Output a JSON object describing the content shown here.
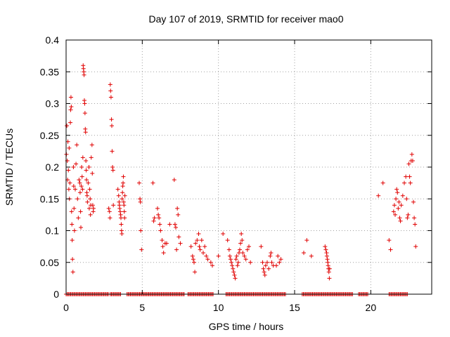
{
  "chart_data": {
    "type": "scatter",
    "title": "Day 107 of 2019, SRMTID for receiver mao0",
    "xlabel": "GPS time / hours",
    "ylabel": "SRMTID / TECUs",
    "xlim": [
      0,
      24
    ],
    "ylim": [
      0,
      0.4
    ],
    "xticks": [
      "0",
      "5",
      "10",
      "15",
      "20"
    ],
    "yticks": [
      "0",
      "0.05",
      "0.1",
      "0.15",
      "0.2",
      "0.25",
      "0.3",
      "0.35",
      "0.4"
    ],
    "xtick_values": [
      0,
      5,
      10,
      15,
      20
    ],
    "ytick_values": [
      0,
      0.05,
      0.1,
      0.15,
      0.2,
      0.25,
      0.3,
      0.35,
      0.4
    ],
    "grid": true,
    "marker": "+",
    "marker_color": "#e00000",
    "series": [
      {
        "name": "SRMTID",
        "points": [
          [
            0.02,
            0.22
          ],
          [
            0.05,
            0.265
          ],
          [
            0.08,
            0.21
          ],
          [
            0.1,
            0.18
          ],
          [
            0.12,
            0.24
          ],
          [
            0.15,
            0.195
          ],
          [
            0.18,
            0.165
          ],
          [
            0.2,
            0.23
          ],
          [
            0.22,
            0.15
          ],
          [
            0.25,
            0.175
          ],
          [
            0.28,
            0.27
          ],
          [
            0.3,
            0.29
          ],
          [
            0.32,
            0.31
          ],
          [
            0.34,
            0.295
          ],
          [
            0.36,
            0.13
          ],
          [
            0.38,
            0.11
          ],
          [
            0.4,
            0.085
          ],
          [
            0.42,
            0.055
          ],
          [
            0.45,
            0.035
          ],
          [
            0.48,
            0.2
          ],
          [
            0.5,
            0.17
          ],
          [
            0.52,
            0.135
          ],
          [
            0.55,
            0.1
          ],
          [
            0.6,
            0.165
          ],
          [
            0.65,
            0.205
          ],
          [
            0.7,
            0.235
          ],
          [
            0.75,
            0.15
          ],
          [
            0.8,
            0.12
          ],
          [
            0.85,
            0.18
          ],
          [
            0.9,
            0.175
          ],
          [
            0.92,
            0.16
          ],
          [
            0.95,
            0.13
          ],
          [
            0.97,
            0.105
          ],
          [
            1.0,
            0.17
          ],
          [
            1.02,
            0.2
          ],
          [
            1.05,
            0.185
          ],
          [
            1.08,
            0.165
          ],
          [
            1.1,
            0.215
          ],
          [
            1.12,
            0.36
          ],
          [
            1.14,
            0.355
          ],
          [
            1.16,
            0.35
          ],
          [
            1.18,
            0.345
          ],
          [
            1.2,
            0.305
          ],
          [
            1.22,
            0.3
          ],
          [
            1.24,
            0.285
          ],
          [
            1.26,
            0.26
          ],
          [
            1.28,
            0.255
          ],
          [
            1.3,
            0.21
          ],
          [
            1.32,
            0.195
          ],
          [
            1.34,
            0.18
          ],
          [
            1.36,
            0.16
          ],
          [
            1.38,
            0.155
          ],
          [
            1.4,
            0.145
          ],
          [
            1.45,
            0.175
          ],
          [
            1.5,
            0.2
          ],
          [
            1.52,
            0.135
          ],
          [
            1.55,
            0.165
          ],
          [
            1.58,
            0.15
          ],
          [
            1.6,
            0.125
          ],
          [
            1.62,
            0.14
          ],
          [
            1.65,
            0.215
          ],
          [
            1.7,
            0.235
          ],
          [
            1.72,
            0.19
          ],
          [
            1.75,
            0.14
          ],
          [
            1.78,
            0.13
          ],
          [
            1.8,
            0.135
          ],
          [
            2.8,
            0.135
          ],
          [
            2.85,
            0.13
          ],
          [
            2.88,
            0.12
          ],
          [
            2.9,
            0.33
          ],
          [
            2.92,
            0.32
          ],
          [
            2.95,
            0.31
          ],
          [
            2.98,
            0.275
          ],
          [
            3.0,
            0.265
          ],
          [
            3.02,
            0.225
          ],
          [
            3.05,
            0.2
          ],
          [
            3.08,
            0.195
          ],
          [
            3.1,
            0.14
          ],
          [
            3.4,
            0.165
          ],
          [
            3.45,
            0.155
          ],
          [
            3.48,
            0.145
          ],
          [
            3.5,
            0.14
          ],
          [
            3.52,
            0.135
          ],
          [
            3.55,
            0.13
          ],
          [
            3.58,
            0.125
          ],
          [
            3.6,
            0.12
          ],
          [
            3.62,
            0.11
          ],
          [
            3.64,
            0.1
          ],
          [
            3.66,
            0.095
          ],
          [
            3.68,
            0.15
          ],
          [
            3.7,
            0.16
          ],
          [
            3.72,
            0.17
          ],
          [
            3.74,
            0.175
          ],
          [
            3.76,
            0.185
          ],
          [
            3.78,
            0.145
          ],
          [
            3.8,
            0.14
          ],
          [
            3.82,
            0.13
          ],
          [
            3.84,
            0.12
          ],
          [
            3.86,
            0.155
          ],
          [
            4.8,
            0.175
          ],
          [
            4.85,
            0.15
          ],
          [
            4.88,
            0.145
          ],
          [
            4.9,
            0.1
          ],
          [
            4.95,
            0.07
          ],
          [
            5.7,
            0.175
          ],
          [
            5.75,
            0.115
          ],
          [
            5.8,
            0.12
          ],
          [
            6.0,
            0.135
          ],
          [
            6.05,
            0.125
          ],
          [
            6.1,
            0.12
          ],
          [
            6.15,
            0.11
          ],
          [
            6.2,
            0.1
          ],
          [
            6.3,
            0.085
          ],
          [
            6.35,
            0.075
          ],
          [
            6.4,
            0.065
          ],
          [
            6.5,
            0.08
          ],
          [
            6.6,
            0.08
          ],
          [
            6.8,
            0.11
          ],
          [
            7.1,
            0.18
          ],
          [
            7.15,
            0.11
          ],
          [
            7.2,
            0.105
          ],
          [
            7.25,
            0.07
          ],
          [
            7.3,
            0.135
          ],
          [
            7.35,
            0.125
          ],
          [
            7.4,
            0.09
          ],
          [
            7.5,
            0.08
          ],
          [
            8.2,
            0.075
          ],
          [
            8.3,
            0.06
          ],
          [
            8.35,
            0.055
          ],
          [
            8.4,
            0.05
          ],
          [
            8.45,
            0.035
          ],
          [
            8.5,
            0.08
          ],
          [
            8.6,
            0.085
          ],
          [
            8.7,
            0.095
          ],
          [
            8.75,
            0.075
          ],
          [
            8.8,
            0.07
          ],
          [
            8.9,
            0.085
          ],
          [
            9.0,
            0.065
          ],
          [
            9.1,
            0.075
          ],
          [
            9.2,
            0.06
          ],
          [
            9.3,
            0.055
          ],
          [
            9.5,
            0.05
          ],
          [
            9.6,
            0.045
          ],
          [
            10.0,
            0.06
          ],
          [
            10.3,
            0.095
          ],
          [
            10.6,
            0.085
          ],
          [
            10.7,
            0.07
          ],
          [
            10.75,
            0.06
          ],
          [
            10.8,
            0.055
          ],
          [
            10.85,
            0.05
          ],
          [
            10.9,
            0.045
          ],
          [
            10.95,
            0.04
          ],
          [
            11.0,
            0.035
          ],
          [
            11.05,
            0.03
          ],
          [
            11.1,
            0.025
          ],
          [
            11.15,
            0.055
          ],
          [
            11.2,
            0.06
          ],
          [
            11.25,
            0.045
          ],
          [
            11.3,
            0.05
          ],
          [
            11.35,
            0.065
          ],
          [
            11.4,
            0.07
          ],
          [
            11.45,
            0.08
          ],
          [
            11.5,
            0.095
          ],
          [
            11.55,
            0.085
          ],
          [
            11.6,
            0.065
          ],
          [
            11.7,
            0.06
          ],
          [
            11.8,
            0.055
          ],
          [
            11.9,
            0.07
          ],
          [
            12.0,
            0.075
          ],
          [
            12.1,
            0.05
          ],
          [
            12.8,
            0.075
          ],
          [
            12.9,
            0.05
          ],
          [
            12.95,
            0.04
          ],
          [
            13.0,
            0.035
          ],
          [
            13.05,
            0.03
          ],
          [
            13.1,
            0.045
          ],
          [
            13.2,
            0.05
          ],
          [
            13.3,
            0.04
          ],
          [
            13.4,
            0.06
          ],
          [
            13.45,
            0.065
          ],
          [
            13.5,
            0.05
          ],
          [
            13.6,
            0.045
          ],
          [
            13.8,
            0.045
          ],
          [
            13.9,
            0.06
          ],
          [
            14.0,
            0.05
          ],
          [
            14.1,
            0.055
          ],
          [
            15.6,
            0.065
          ],
          [
            15.8,
            0.085
          ],
          [
            16.1,
            0.06
          ],
          [
            17.0,
            0.075
          ],
          [
            17.05,
            0.07
          ],
          [
            17.1,
            0.065
          ],
          [
            17.12,
            0.06
          ],
          [
            17.15,
            0.055
          ],
          [
            17.18,
            0.05
          ],
          [
            17.2,
            0.045
          ],
          [
            17.22,
            0.04
          ],
          [
            17.25,
            0.035
          ],
          [
            17.28,
            0.025
          ],
          [
            17.3,
            0.04
          ],
          [
            20.5,
            0.155
          ],
          [
            20.8,
            0.175
          ],
          [
            21.2,
            0.085
          ],
          [
            21.3,
            0.07
          ],
          [
            21.5,
            0.13
          ],
          [
            21.55,
            0.14
          ],
          [
            21.6,
            0.125
          ],
          [
            21.65,
            0.15
          ],
          [
            21.7,
            0.165
          ],
          [
            21.75,
            0.16
          ],
          [
            21.8,
            0.135
          ],
          [
            21.85,
            0.145
          ],
          [
            21.9,
            0.12
          ],
          [
            21.95,
            0.115
          ],
          [
            22.0,
            0.14
          ],
          [
            22.1,
            0.155
          ],
          [
            22.2,
            0.175
          ],
          [
            22.3,
            0.185
          ],
          [
            22.35,
            0.15
          ],
          [
            22.4,
            0.12
          ],
          [
            22.45,
            0.125
          ],
          [
            22.5,
            0.205
          ],
          [
            22.55,
            0.185
          ],
          [
            22.6,
            0.175
          ],
          [
            22.65,
            0.21
          ],
          [
            22.7,
            0.22
          ],
          [
            22.75,
            0.21
          ],
          [
            22.8,
            0.145
          ],
          [
            22.85,
            0.12
          ],
          [
            22.9,
            0.11
          ],
          [
            22.95,
            0.075
          ]
        ]
      }
    ],
    "zero_segments": [
      [
        0,
        2.8
      ],
      [
        2.9,
        3.6
      ],
      [
        4.0,
        7.8
      ],
      [
        8.0,
        9.7
      ],
      [
        10.5,
        14.4
      ],
      [
        15.5,
        18.8
      ],
      [
        19.2,
        19.8
      ],
      [
        21.2,
        22.4
      ]
    ]
  }
}
